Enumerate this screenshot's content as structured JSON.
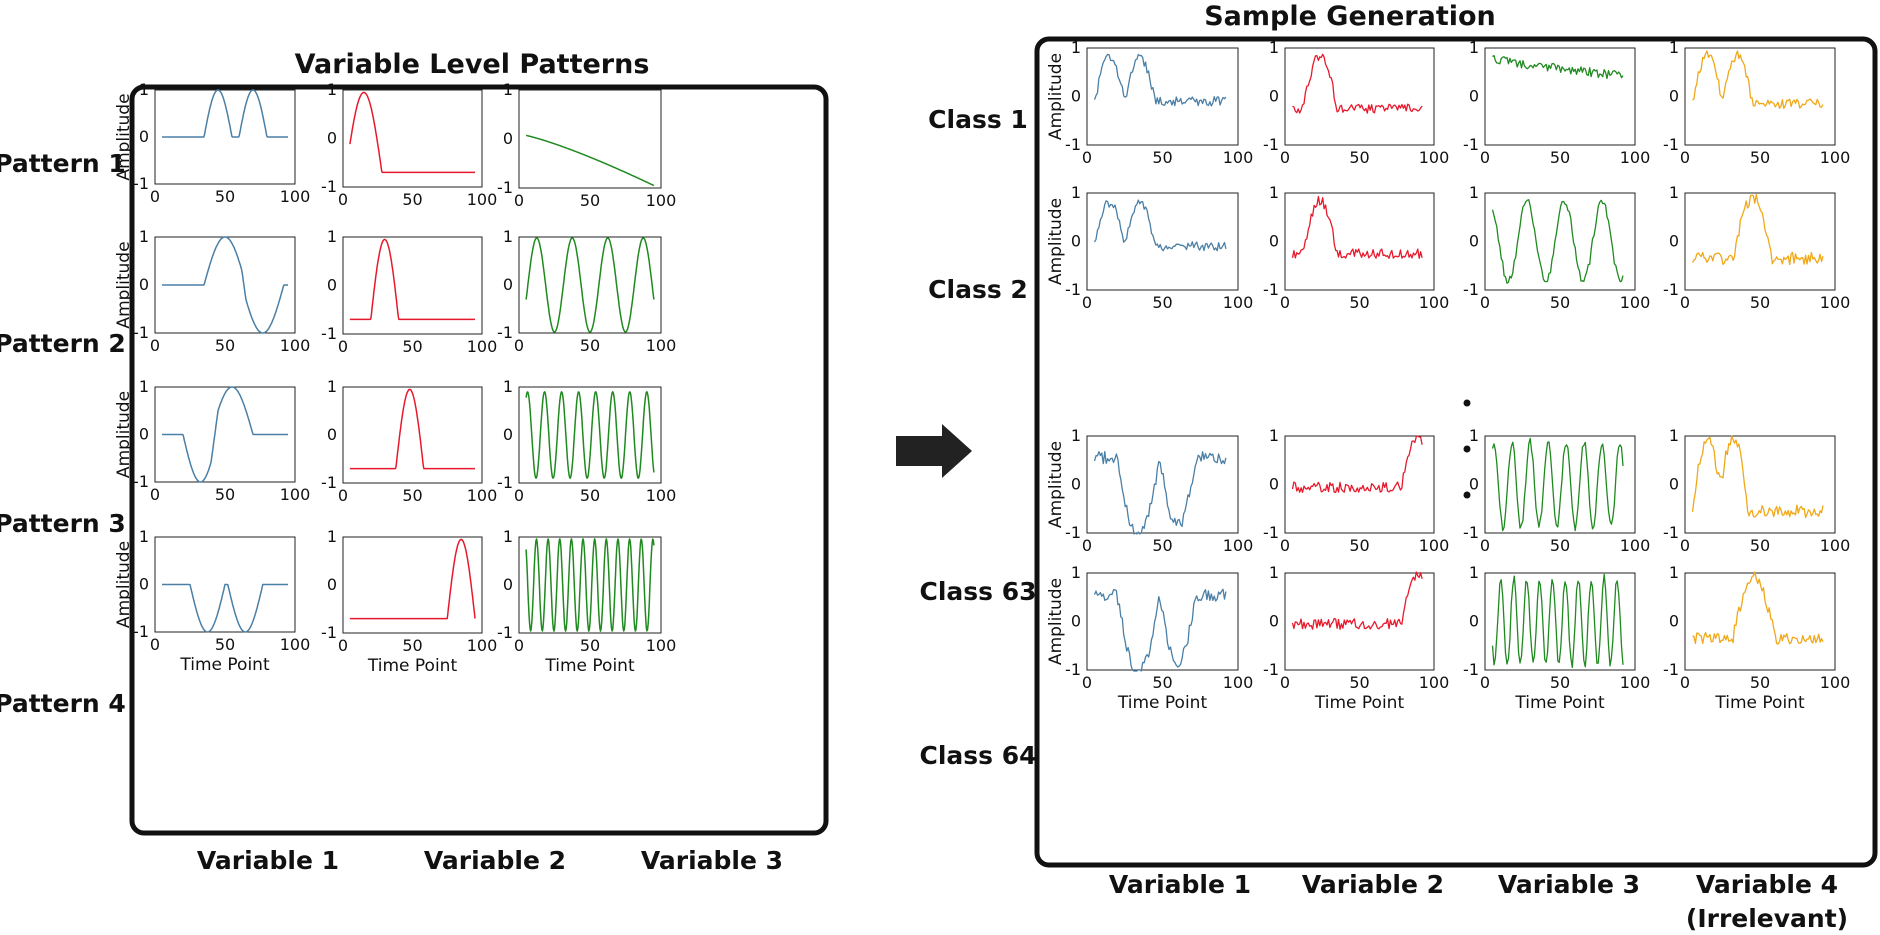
{
  "left_panel": {
    "title": "Variable Level Patterns",
    "rows": [
      "Pattern 1",
      "Pattern 2",
      "Pattern 3",
      "Pattern 4"
    ],
    "columns": [
      "Variable 1",
      "Variable 2",
      "Variable 3"
    ]
  },
  "right_panel": {
    "title": "Sample Generation",
    "rows": [
      "Class 1",
      "Class 2",
      "Class 63",
      "Class 64"
    ],
    "columns": [
      "Variable 1",
      "Variable 2",
      "Variable 3",
      "Variable 4",
      "(Irrelevant)"
    ]
  },
  "axis_labels": {
    "x": "Time Point",
    "y": "Amplitude"
  },
  "ticks": {
    "x": [
      "0",
      "50",
      "100"
    ],
    "y": [
      "1",
      "0",
      "-1"
    ]
  },
  "colors": {
    "var1": "#4a7fa6",
    "var2": "#e8192c",
    "var3": "#1f8a1f",
    "var4": "#f0a818",
    "frame": "#111111"
  },
  "chart_data": [
    {
      "type": "line",
      "title": "Variable Level Patterns",
      "xlabel": "Time Point",
      "ylabel": "Amplitude",
      "xlim": [
        0,
        100
      ],
      "ylim": [
        -1,
        1
      ],
      "series": [
        {
          "name": "Pattern 1 / Variable 1",
          "shape": "two sine bumps peaking near t=50 and t=75",
          "color": "#4a7fa6"
        },
        {
          "name": "Pattern 1 / Variable 2",
          "shape": "single bump peaking near t=15",
          "color": "#e8192c"
        },
        {
          "name": "Pattern 1 / Variable 3",
          "shape": "decaying curve from 0 to -1",
          "color": "#1f8a1f"
        },
        {
          "name": "Pattern 2 / Variable 1",
          "shape": "positive bump then negative bump",
          "color": "#4a7fa6"
        },
        {
          "name": "Pattern 2 / Variable 2",
          "shape": "single bump peaking near t=30",
          "color": "#e8192c"
        },
        {
          "name": "Pattern 2 / Variable 3",
          "shape": "sine wave, 4 cycles",
          "color": "#1f8a1f"
        },
        {
          "name": "Pattern 3 / Variable 1",
          "shape": "negative bump then positive bump",
          "color": "#4a7fa6"
        },
        {
          "name": "Pattern 3 / Variable 2",
          "shape": "single bump peaking near t=50",
          "color": "#e8192c"
        },
        {
          "name": "Pattern 3 / Variable 3",
          "shape": "sine wave, 8 cycles",
          "color": "#1f8a1f"
        },
        {
          "name": "Pattern 4 / Variable 1",
          "shape": "two negative bumps",
          "color": "#4a7fa6"
        },
        {
          "name": "Pattern 4 / Variable 2",
          "shape": "single bump peaking near t=85",
          "color": "#e8192c"
        },
        {
          "name": "Pattern 4 / Variable 3",
          "shape": "sine wave, 12 cycles",
          "color": "#1f8a1f"
        }
      ]
    },
    {
      "type": "line",
      "title": "Sample Generation",
      "xlabel": "Time Point",
      "ylabel": "Amplitude",
      "xlim": [
        0,
        100
      ],
      "ylim": [
        -1,
        1
      ],
      "series": [
        {
          "name": "Class 1",
          "description": "Pattern 1 variables plus noise; Variable 4 irrelevant noise"
        },
        {
          "name": "Class 2",
          "description": "Variable 3 uses Pattern 2 (4-cycle sine) plus noise"
        },
        {
          "name": "Class 63",
          "description": "negative-bump Variable 1, late Variable 2 bump, 8-cycle Variable 3"
        },
        {
          "name": "Class 64",
          "description": "negative-bump Variable 1, late Variable 2 bump, 12-cycle Variable 3"
        }
      ]
    }
  ]
}
